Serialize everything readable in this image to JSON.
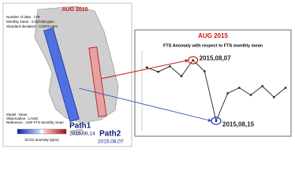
{
  "map": {
    "title": "AUG 2015",
    "stats": [
      "Number of data : 179",
      "Monthly mean : 0.027450 ppm",
      "Standard deviation : 4.0375 ppm"
    ],
    "paths": [
      {
        "name": "Path1",
        "date": "2015,08,14"
      },
      {
        "name": "Path2",
        "date": "2015,08,07"
      }
    ],
    "notes": [
      "Model : Nieer",
      "Observation : LANG",
      "Reference : ANP FTS Monthly mean"
    ],
    "colorbar_label": "XCO2 anomaly (ppm)"
  },
  "chart_data": {
    "type": "line",
    "heading": "AUG 2015",
    "title": "FTS Anomaly with respect to FTS monthly mean",
    "categories": [
      null,
      null,
      null,
      null,
      null,
      null,
      null,
      null,
      null,
      null,
      null,
      null,
      null
    ],
    "series": [
      {
        "color": "#222222",
        "values": [
          3.2,
          2.4,
          3.4,
          1.6,
          4.5,
          2.5,
          -6.5,
          -1.5,
          -0.5,
          -1.8,
          -0.2,
          -2.2,
          -0.5
        ]
      }
    ],
    "ylim": [
      -8,
      6
    ],
    "annotations": [
      {
        "text": "2015,08,07",
        "color": "#d01010"
      },
      {
        "text": "2015,08,15",
        "color": "#1030d0"
      }
    ]
  }
}
